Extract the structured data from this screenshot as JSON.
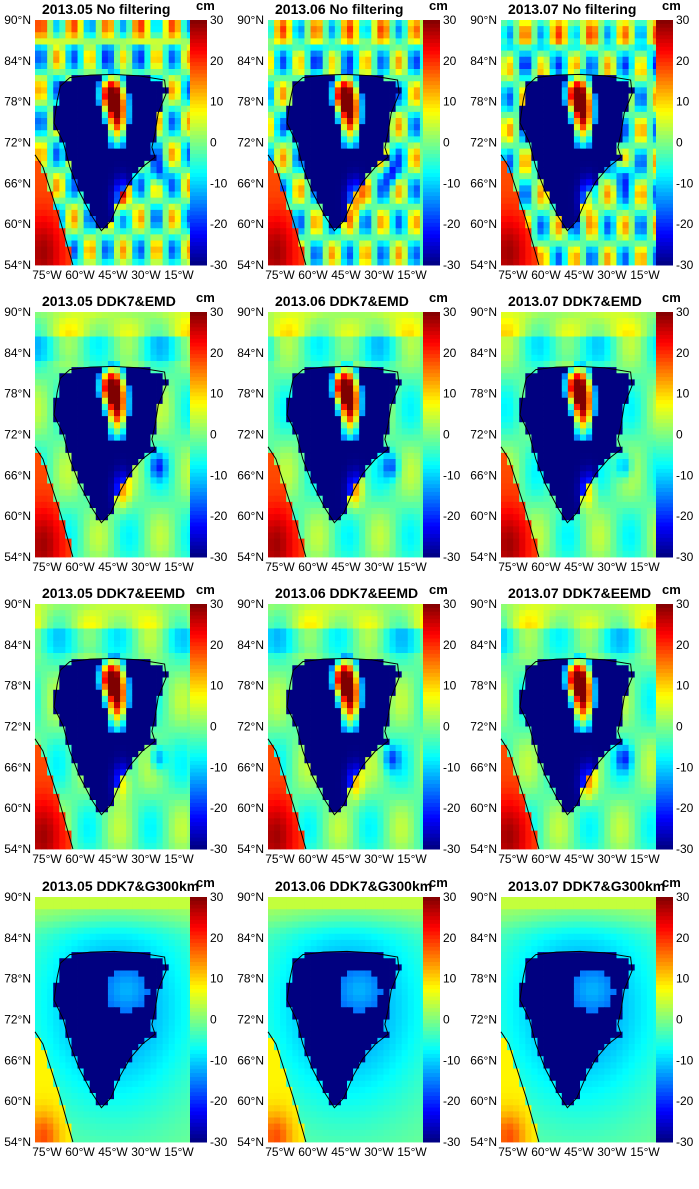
{
  "figure": {
    "colorbar": {
      "unit": "cm",
      "ticks": [
        "30",
        "20",
        "10",
        "0",
        "-10",
        "-20",
        "-30"
      ],
      "range": [
        -30,
        30
      ],
      "colormap": "jet"
    },
    "lat_ticks": [
      "90°N",
      "84°N",
      "78°N",
      "72°N",
      "66°N",
      "60°N",
      "54°N"
    ],
    "lon_ticks": [
      "75°W",
      "60°W",
      "45°W",
      "30°W",
      "15°W"
    ]
  },
  "chart_data": [
    {
      "type": "heatmap",
      "title": "2013.05 No filtering",
      "variant": "noisy",
      "month": "2013.05",
      "ylabel_ticks": "lat",
      "unit": "cm",
      "vrange": [
        -30,
        30
      ]
    },
    {
      "type": "heatmap",
      "title": "2013.06 No filtering",
      "variant": "noisy",
      "month": "2013.06",
      "unit": "cm",
      "vrange": [
        -30,
        30
      ]
    },
    {
      "type": "heatmap",
      "title": "2013.07 No filtering",
      "variant": "noisy",
      "month": "2013.07",
      "unit": "cm",
      "vrange": [
        -30,
        30
      ]
    },
    {
      "type": "heatmap",
      "title": "2013.05 DDK7&EMD",
      "variant": "emd",
      "month": "2013.05",
      "unit": "cm",
      "vrange": [
        -30,
        30
      ]
    },
    {
      "type": "heatmap",
      "title": "2013.06 DDK7&EMD",
      "variant": "emd",
      "month": "2013.06",
      "unit": "cm",
      "vrange": [
        -30,
        30
      ]
    },
    {
      "type": "heatmap",
      "title": "2013.07 DDK7&EMD",
      "variant": "emd",
      "month": "2013.07",
      "unit": "cm",
      "vrange": [
        -30,
        30
      ]
    },
    {
      "type": "heatmap",
      "title": "2013.05 DDK7&EEMD",
      "variant": "emd",
      "month": "2013.05",
      "unit": "cm",
      "vrange": [
        -30,
        30
      ]
    },
    {
      "type": "heatmap",
      "title": "2013.06 DDK7&EEMD",
      "variant": "emd",
      "month": "2013.06",
      "unit": "cm",
      "vrange": [
        -30,
        30
      ]
    },
    {
      "type": "heatmap",
      "title": "2013.07 DDK7&EEMD",
      "variant": "emd",
      "month": "2013.07",
      "unit": "cm",
      "vrange": [
        -30,
        30
      ]
    },
    {
      "type": "heatmap",
      "title": "2013.05 DDK7&G300km",
      "variant": "gauss",
      "month": "2013.05",
      "unit": "cm",
      "vrange": [
        -30,
        30
      ]
    },
    {
      "type": "heatmap",
      "title": "2013.06 DDK7&G300km",
      "variant": "gauss",
      "month": "2013.06",
      "unit": "cm",
      "vrange": [
        -30,
        30
      ]
    },
    {
      "type": "heatmap",
      "title": "2013.07 DDK7&G300km",
      "variant": "gauss",
      "month": "2013.07",
      "unit": "cm",
      "vrange": [
        -30,
        30
      ]
    }
  ]
}
